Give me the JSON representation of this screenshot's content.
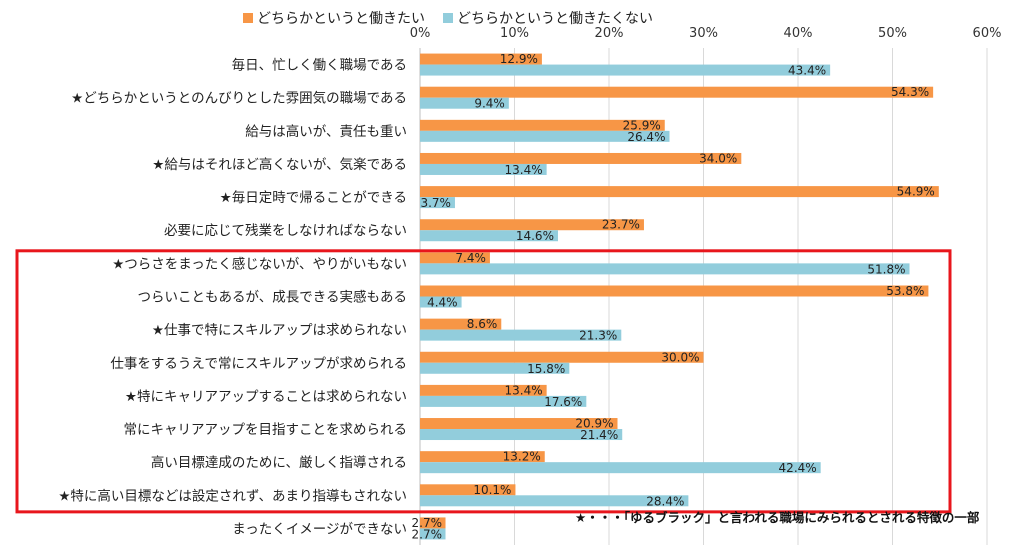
{
  "legend": {
    "series1": "どちらかというと働きたい",
    "series2": "どちらかというと働きたくない"
  },
  "footnote": "★・・・「ゆるブラック」と言われる職場にみられるとされる特徴の一部",
  "colors": {
    "series1": "#F79646",
    "series2": "#92CDDC",
    "highlight": "#E8161C",
    "grid": "#D9D9D9"
  },
  "chart_data": {
    "type": "bar",
    "orientation": "horizontal",
    "title": "",
    "xlabel": "",
    "ylabel": "",
    "xlim": [
      0,
      60
    ],
    "tick_labels": [
      "0%",
      "10%",
      "20%",
      "30%",
      "40%",
      "50%",
      "60%"
    ],
    "categories": [
      "毎日、忙しく働く職場である",
      "★どちらかというとのんびりとした雰囲気の職場である",
      "給与は高いが、責任も重い",
      "★給与はそれほど高くないが、気楽である",
      "★毎日定時で帰ることができる",
      "必要に応じて残業をしなければならない",
      "★つらさをまったく感じないが、やりがいもない",
      "つらいこともあるが、成長できる実感もある",
      "★仕事で特にスキルアップは求められない",
      "仕事をするうえで常にスキルアップが求められる",
      "★特にキャリアアップすることは求められない",
      "常にキャリアアップを目指すことを求められる",
      "高い目標達成のために、厳しく指導される",
      "★特に高い目標などは設定されず、あまり指導もされない",
      "まったくイメージができない"
    ],
    "series": [
      {
        "name": "どちらかというと働きたい",
        "values": [
          12.9,
          54.3,
          25.9,
          34.0,
          54.9,
          23.7,
          7.4,
          53.8,
          8.6,
          30.0,
          13.4,
          20.9,
          13.2,
          10.1,
          2.7
        ],
        "labels": [
          "12.9%",
          "54.3%",
          "25.9%",
          "34.0%",
          "54.9%",
          "23.7%",
          "7.4%",
          "53.8%",
          "8.6%",
          "30.0%",
          "13.4%",
          "20.9%",
          "13.2%",
          "10.1%",
          "2.7%"
        ]
      },
      {
        "name": "どちらかというと働きたくない",
        "values": [
          43.4,
          9.4,
          26.4,
          13.4,
          3.7,
          14.6,
          51.8,
          4.4,
          21.3,
          15.8,
          17.6,
          21.4,
          42.4,
          28.4,
          2.7
        ],
        "labels": [
          "43.4%",
          "9.4%",
          "26.4%",
          "13.4%",
          "3.7%",
          "14.6%",
          "51.8%",
          "4.4%",
          "21.3%",
          "15.8%",
          "17.6%",
          "21.4%",
          "42.4%",
          "28.4%",
          "2.7%"
        ]
      }
    ],
    "highlighted_range": [
      6,
      13
    ]
  }
}
